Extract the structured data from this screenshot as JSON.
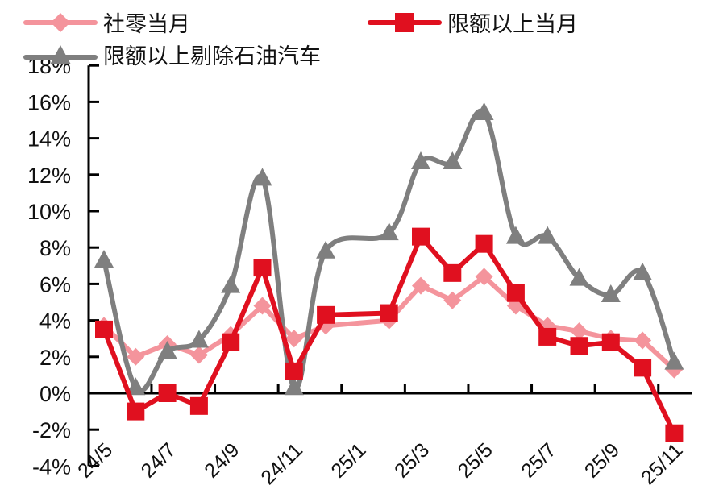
{
  "chart_data": {
    "type": "line",
    "title": "",
    "xlabel": "",
    "ylabel": "",
    "ylim": [
      -0.04,
      0.18
    ],
    "y_ticks": [
      "18%",
      "16%",
      "14%",
      "12%",
      "10%",
      "8%",
      "6%",
      "4%",
      "2%",
      "0%",
      "-2%",
      "-4%"
    ],
    "x_tick_labels": [
      "24/5",
      "24/7",
      "24/9",
      "24/11",
      "25/1",
      "25/3",
      "25/5",
      "25/7",
      "25/9",
      "25/11"
    ],
    "x": [
      "24/5",
      "24/6",
      "24/7",
      "24/8",
      "24/9",
      "24/10",
      "24/11",
      "24/12",
      "25/2",
      "25/3",
      "25/4",
      "25/5",
      "25/6",
      "25/7",
      "25/8",
      "25/9",
      "25/10",
      "25/11"
    ],
    "x_index": [
      0,
      1,
      2,
      3,
      4,
      5,
      6,
      7,
      9,
      10,
      11,
      12,
      13,
      14,
      15,
      16,
      17,
      18
    ],
    "grid": false,
    "legend_position": "top",
    "series": [
      {
        "name": "社零当月",
        "color": "#f4949c",
        "marker": "diamond",
        "smooth": false,
        "values": [
          3.7,
          2.0,
          2.7,
          2.1,
          3.2,
          4.8,
          3.0,
          3.7,
          4.0,
          5.9,
          5.1,
          6.4,
          4.8,
          3.7,
          3.4,
          3.0,
          2.9,
          1.3
        ]
      },
      {
        "name": "限额以上当月",
        "color": "#e0101f",
        "marker": "square",
        "smooth": false,
        "values": [
          3.5,
          -1.0,
          0.0,
          -0.7,
          2.8,
          6.9,
          1.2,
          4.3,
          4.4,
          8.6,
          6.6,
          8.2,
          5.5,
          3.1,
          2.6,
          2.8,
          1.4,
          -2.2
        ]
      },
      {
        "name": "限额以上剔除石油汽车",
        "color": "#7f7f7f",
        "marker": "triangle",
        "smooth": true,
        "values": [
          7.3,
          0.3,
          2.3,
          2.9,
          5.9,
          11.8,
          0.3,
          7.8,
          8.8,
          12.7,
          12.7,
          15.4,
          8.6,
          8.6,
          6.3,
          5.4,
          6.6,
          1.7
        ]
      }
    ]
  },
  "legend": {
    "items": [
      {
        "label": "社零当月"
      },
      {
        "label": "限额以上当月"
      },
      {
        "label": "限额以上剔除石油汽车"
      }
    ]
  }
}
